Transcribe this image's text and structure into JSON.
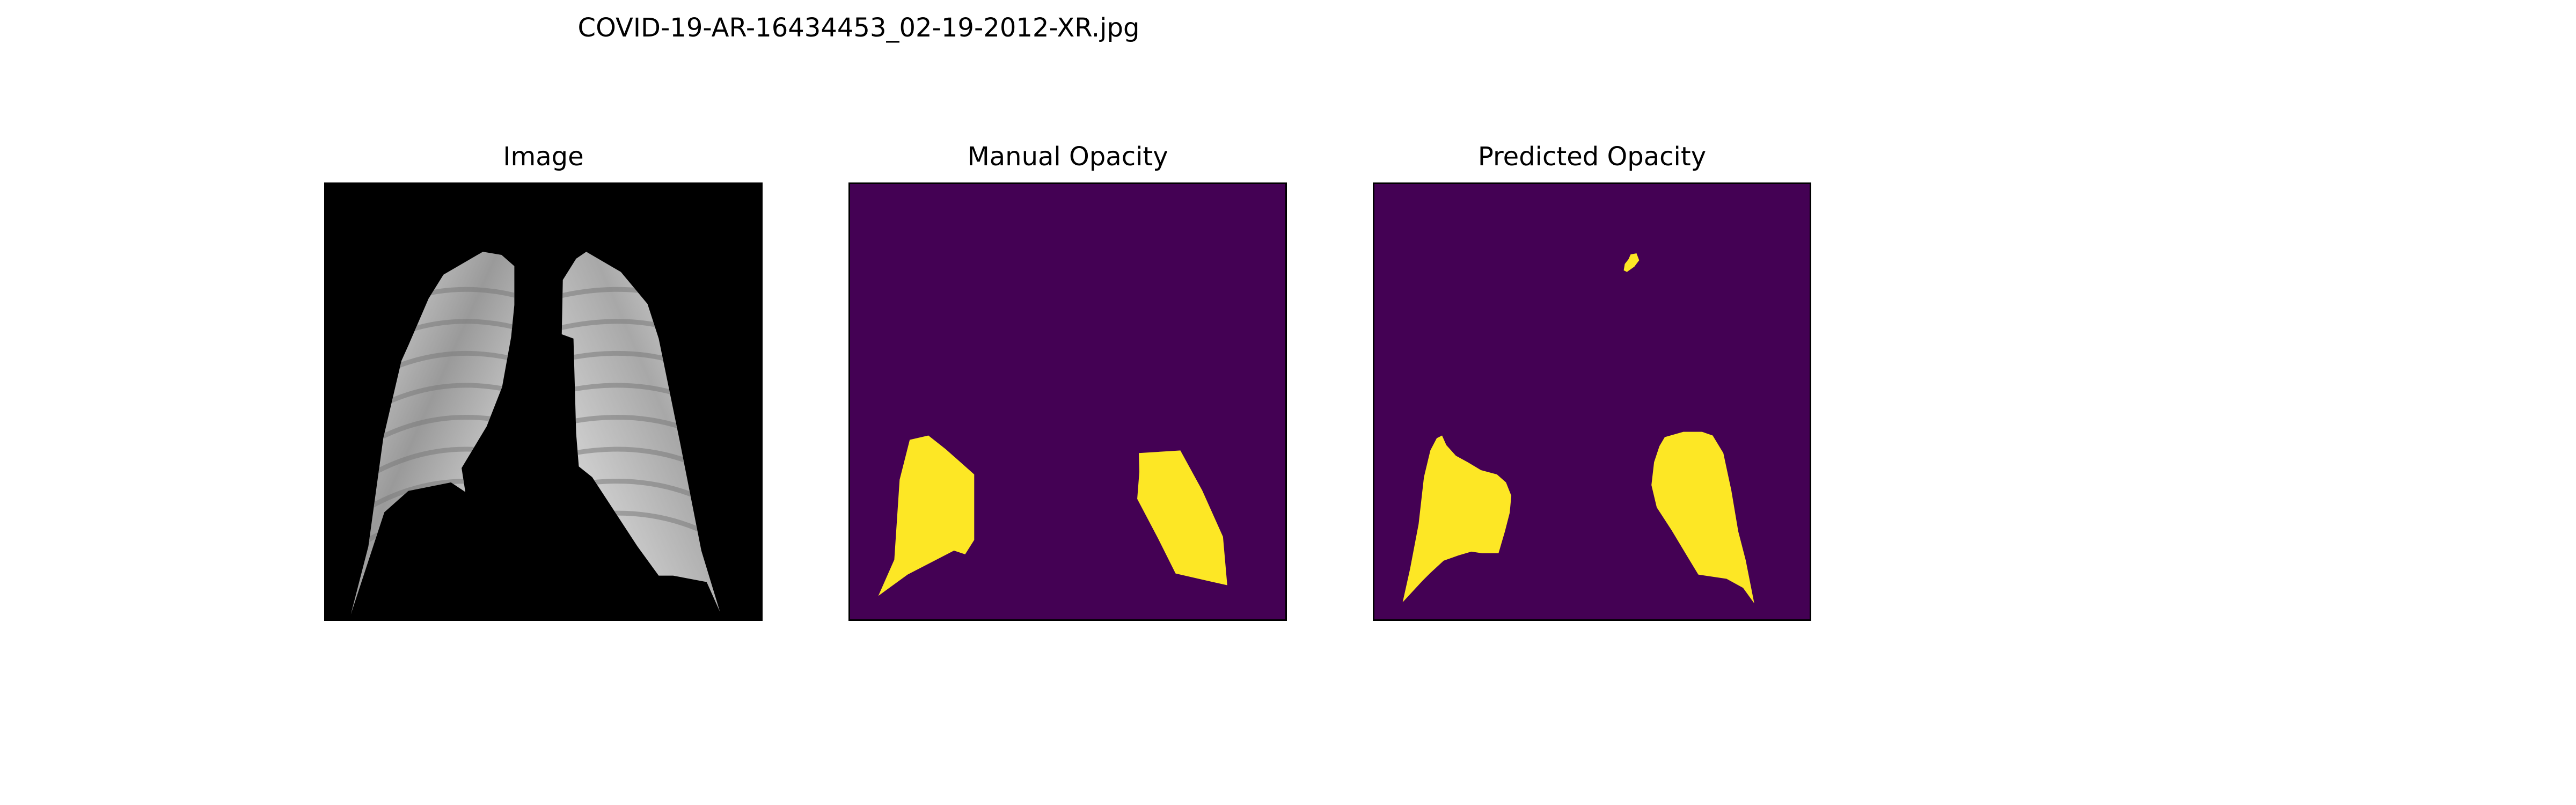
{
  "figure": {
    "title": "COVID-19-AR-16434453_02-19-2012-XR.jpg"
  },
  "panels": [
    {
      "title": "Image",
      "content": "chest x-ray, lungs segmented on black background",
      "colormap": "gray"
    },
    {
      "title": "Manual Opacity",
      "content": "manual opacity mask",
      "colormap": "viridis"
    },
    {
      "title": "Predicted Opacity",
      "content": "predicted opacity mask",
      "colormap": "viridis"
    }
  ],
  "colors": {
    "mask_background": "#440154",
    "mask_foreground": "#fde725",
    "image_background": "#000000",
    "frame": "#000000"
  }
}
